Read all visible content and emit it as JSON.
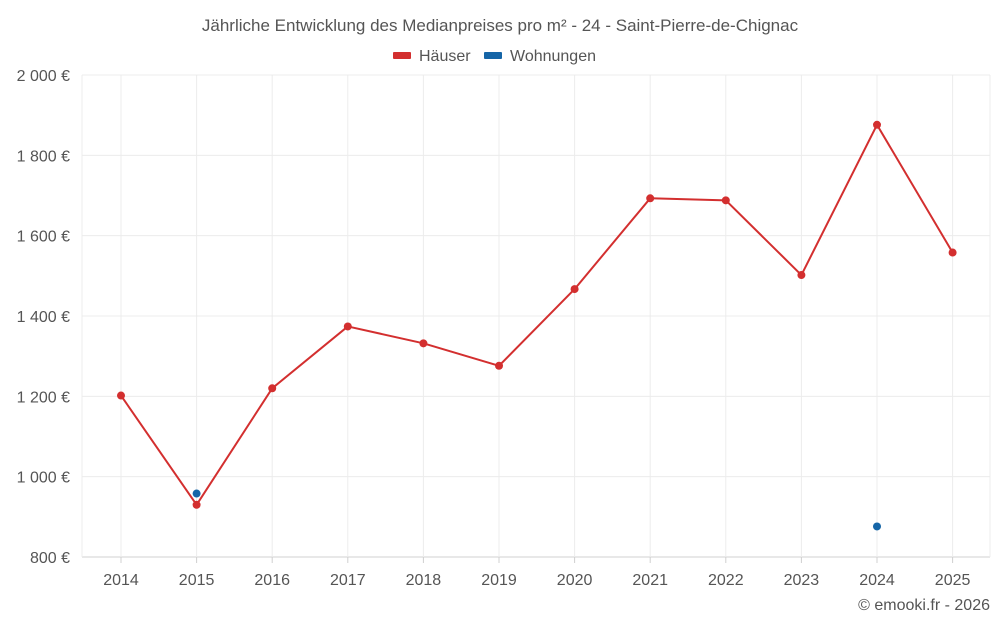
{
  "chart_data": {
    "type": "line",
    "title": "Jährliche Entwicklung des Medianpreises pro m² - 24 - Saint-Pierre-de-Chignac",
    "categories": [
      "2014",
      "2015",
      "2016",
      "2017",
      "2018",
      "2019",
      "2020",
      "2021",
      "2022",
      "2023",
      "2024",
      "2025"
    ],
    "y_ticks": [
      "800 €",
      "1 000 €",
      "1 200 €",
      "1 400 €",
      "1 600 €",
      "1 800 €",
      "2 000 €"
    ],
    "ylim": [
      800,
      2000
    ],
    "grid": true,
    "legend_position": "top-center",
    "series": [
      {
        "name": "Häuser",
        "color": "#d32f2f",
        "values": [
          1202,
          930,
          1220,
          1374,
          1332,
          1276,
          1467,
          1693,
          1688,
          1502,
          1876,
          1558
        ]
      },
      {
        "name": "Wohnungen",
        "color": "#1565a7",
        "values": [
          null,
          958,
          null,
          null,
          null,
          null,
          null,
          null,
          null,
          null,
          876,
          null
        ]
      }
    ]
  },
  "credit": "© emooki.fr - 2026"
}
